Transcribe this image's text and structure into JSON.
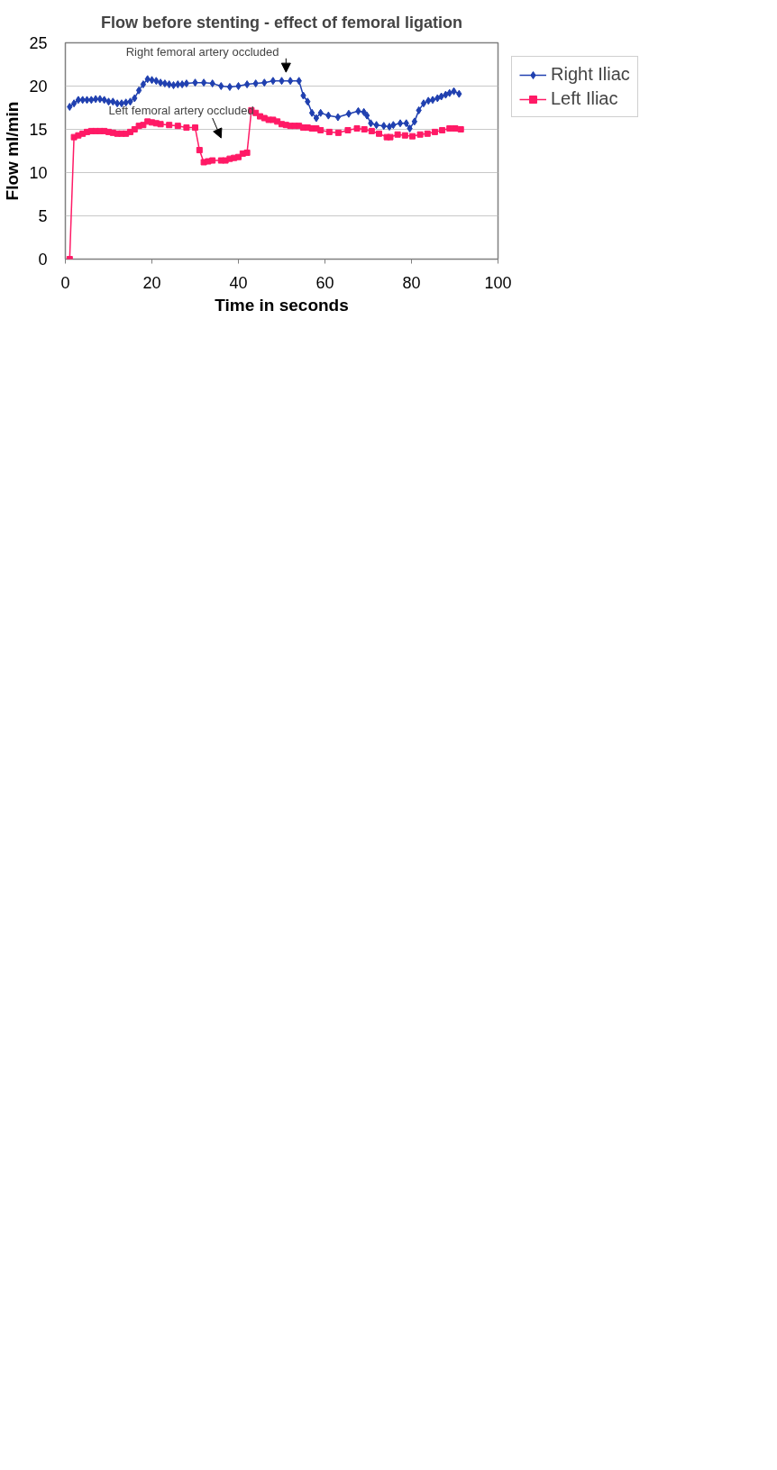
{
  "chart_data": {
    "type": "line",
    "title": "Flow before stenting - effect of femoral ligation",
    "xlabel": "Time in seconds",
    "ylabel": "Flow ml/min",
    "xlim": [
      0,
      100
    ],
    "xticks": [
      0,
      20,
      40,
      60,
      80,
      100
    ],
    "ylim": [
      0,
      25
    ],
    "yticks": [
      0,
      5,
      10,
      15,
      20,
      25
    ],
    "grid": "y",
    "legend": "right",
    "series": [
      {
        "name": "Right Iliac",
        "color": "#2040b0",
        "marker": "diamond",
        "x": [
          1,
          2,
          3,
          4,
          5,
          6,
          7,
          8,
          9,
          10,
          11,
          12,
          13,
          14,
          15,
          16,
          17,
          18,
          19,
          20,
          21,
          22,
          23,
          24,
          25,
          26,
          27,
          28,
          30,
          32,
          34,
          36,
          38,
          40,
          42,
          44,
          46,
          48,
          50,
          52,
          54,
          55,
          56,
          57,
          58,
          59,
          60.8,
          63,
          65.5,
          67.7,
          69,
          69.7,
          70.6,
          71.9,
          73.6,
          74.9,
          75.8,
          77.4,
          78.8,
          79.6,
          80.7,
          81.7,
          82.8,
          83.9,
          84.9,
          86,
          86.9,
          87.9,
          88.8,
          89.8,
          91
        ],
        "values": [
          17.6,
          18.0,
          18.4,
          18.4,
          18.4,
          18.4,
          18.5,
          18.5,
          18.4,
          18.2,
          18.2,
          18.0,
          18.0,
          18.1,
          18.2,
          18.6,
          19.5,
          20.2,
          20.8,
          20.7,
          20.6,
          20.4,
          20.3,
          20.2,
          20.1,
          20.2,
          20.2,
          20.3,
          20.4,
          20.4,
          20.3,
          20.0,
          19.9,
          20.0,
          20.2,
          20.3,
          20.4,
          20.6,
          20.6,
          20.6,
          20.6,
          18.9,
          18.2,
          16.9,
          16.3,
          16.9,
          16.6,
          16.4,
          16.8,
          17.1,
          17.0,
          16.6,
          15.7,
          15.5,
          15.4,
          15.3,
          15.5,
          15.7,
          15.7,
          15.1,
          15.9,
          17.2,
          18.0,
          18.3,
          18.4,
          18.6,
          18.8,
          19.0,
          19.2,
          19.4,
          19.1
        ]
      },
      {
        "name": "Left Iliac",
        "color": "#ff1a66",
        "marker": "square",
        "x": [
          1,
          2,
          3,
          4,
          5,
          6,
          7,
          8,
          9,
          10,
          11,
          12,
          13,
          14,
          15,
          16,
          17,
          18,
          19,
          20,
          21,
          22,
          24,
          26,
          28,
          30,
          31,
          32,
          33,
          34,
          36,
          37,
          38,
          39,
          40,
          41,
          42,
          43,
          44,
          45,
          46,
          47,
          48,
          49,
          50,
          51,
          52,
          53,
          54,
          55,
          56,
          57,
          58,
          59,
          61,
          63.1,
          65.3,
          67.4,
          69.1,
          70.8,
          72.5,
          74.3,
          75.1,
          76.8,
          78.5,
          80.2,
          82,
          83.7,
          85.4,
          87.1,
          88.8,
          90.1,
          91.4
        ],
        "values": [
          0,
          14.1,
          14.3,
          14.5,
          14.7,
          14.8,
          14.8,
          14.8,
          14.8,
          14.7,
          14.6,
          14.5,
          14.5,
          14.5,
          14.7,
          15.0,
          15.4,
          15.5,
          15.9,
          15.8,
          15.7,
          15.6,
          15.5,
          15.4,
          15.2,
          15.2,
          12.6,
          11.2,
          11.3,
          11.4,
          11.4,
          11.4,
          11.6,
          11.7,
          11.8,
          12.2,
          12.3,
          17.2,
          16.9,
          16.5,
          16.3,
          16.1,
          16.1,
          15.9,
          15.6,
          15.5,
          15.4,
          15.4,
          15.4,
          15.2,
          15.2,
          15.1,
          15.1,
          14.9,
          14.7,
          14.6,
          14.9,
          15.1,
          15.0,
          14.8,
          14.5,
          14.1,
          14.1,
          14.4,
          14.3,
          14.2,
          14.4,
          14.5,
          14.7,
          14.9,
          15.1,
          15.1,
          15.0
        ]
      }
    ],
    "annotations": [
      "Right femoral artery occluded",
      "Left femoral artery occluded"
    ]
  }
}
